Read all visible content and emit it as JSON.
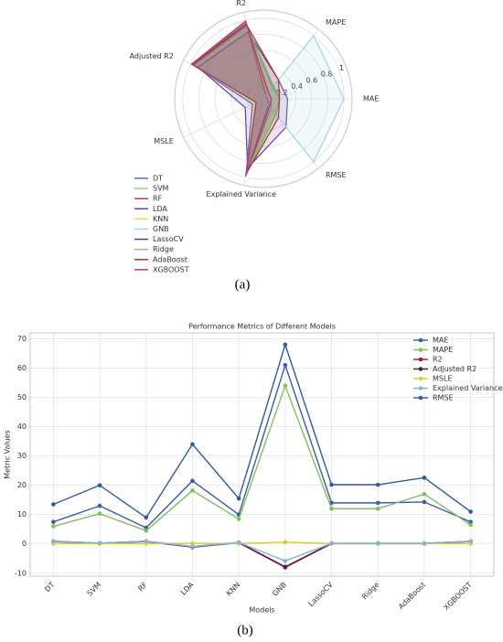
{
  "chart_data": [
    {
      "type": "radar",
      "axes": [
        "MAE",
        "MAPE",
        "R2",
        "Adjusted R2",
        "MSLE",
        "Explained Variance",
        "RMSE"
      ],
      "rlim": [
        0,
        1.1
      ],
      "rticks": [
        0.2,
        0.4,
        0.6,
        0.8,
        1.0
      ],
      "grid": true,
      "legend": "lower left",
      "caption": "(a)",
      "series": [
        {
          "name": "DT",
          "color": "#4c72b0",
          "values": [
            0.1,
            0.1,
            0.95,
            0.98,
            0.15,
            0.97,
            0.15
          ]
        },
        {
          "name": "SVM",
          "color": "#8fd18a",
          "values": [
            0.2,
            0.18,
            0.92,
            0.95,
            0.1,
            0.94,
            0.25
          ]
        },
        {
          "name": "RF",
          "color": "#b0413e",
          "values": [
            0.05,
            0.05,
            0.99,
            0.99,
            0.1,
            0.99,
            0.1
          ]
        },
        {
          "name": "LDA",
          "color": "#6a3d9a",
          "values": [
            0.3,
            0.3,
            0.85,
            0.9,
            0.25,
            0.88,
            0.45
          ]
        },
        {
          "name": "KNN",
          "color": "#e8d94a",
          "values": [
            0.1,
            0.12,
            0.93,
            0.96,
            0.12,
            0.95,
            0.2
          ]
        },
        {
          "name": "GNB",
          "color": "#9fd8e0",
          "values": [
            1.0,
            1.0,
            0.0,
            0.0,
            0.1,
            0.0,
            1.0
          ]
        },
        {
          "name": "LassoCV",
          "color": "#4b3f8f",
          "values": [
            0.2,
            0.2,
            0.93,
            0.96,
            0.1,
            0.95,
            0.25
          ]
        },
        {
          "name": "Ridge",
          "color": "#7ccf7c",
          "values": [
            0.2,
            0.2,
            0.93,
            0.96,
            0.1,
            0.95,
            0.25
          ]
        },
        {
          "name": "AdaBoost",
          "color": "#9b3b2e",
          "values": [
            0.2,
            0.3,
            0.94,
            0.97,
            0.1,
            0.95,
            0.3
          ]
        },
        {
          "name": "XGBOOST",
          "color": "#b5358f",
          "values": [
            0.1,
            0.1,
            0.97,
            0.98,
            0.1,
            0.97,
            0.12
          ]
        }
      ]
    },
    {
      "type": "line",
      "title": "Performance Metrics of Different Models",
      "x_label": "Models",
      "y_label": "Metric Values",
      "caption": "(b)",
      "categories": [
        "DT",
        "SVM",
        "RF",
        "LDA",
        "KNN",
        "GNB",
        "LassoCV",
        "Ridge",
        "AdaBoost",
        "XGBOOST"
      ],
      "ylim": [
        -11,
        72
      ],
      "yticks": [
        -10,
        0,
        10,
        20,
        30,
        40,
        50,
        60,
        70
      ],
      "grid": true,
      "legend": "upper right",
      "series": [
        {
          "name": "MAE",
          "color": "#3b5ba5",
          "values": [
            7.5,
            13,
            5.5,
            21.5,
            10,
            61,
            14,
            14,
            14.3,
            7.5
          ]
        },
        {
          "name": "MAPE",
          "color": "#7fbf5f",
          "values": [
            6,
            10.3,
            4.5,
            18.2,
            8.5,
            54,
            12,
            12,
            17,
            6.5
          ]
        },
        {
          "name": "R2",
          "color": "#9b1c2c",
          "values": [
            0.9,
            0.3,
            0.9,
            -0.9,
            0.5,
            -7.8,
            0.2,
            0.2,
            0.2,
            0.9
          ]
        },
        {
          "name": "Adjusted R2",
          "color": "#5a1a4a",
          "values": [
            0.8,
            0.2,
            0.8,
            -1.1,
            0.4,
            -8,
            0.1,
            0.1,
            0.1,
            0.8
          ]
        },
        {
          "name": "MSLE",
          "color": "#d8d020",
          "values": [
            0.1,
            0.1,
            0.1,
            0.2,
            0.1,
            0.6,
            0.1,
            0.1,
            0.1,
            0.1
          ]
        },
        {
          "name": "Explained Variance",
          "color": "#7fb8d8",
          "values": [
            0.9,
            0.3,
            0.9,
            -0.9,
            0.5,
            -5.8,
            0.2,
            0.2,
            0.2,
            0.9
          ]
        },
        {
          "name": "RMSE",
          "color": "#2f5a9e",
          "values": [
            13.5,
            20,
            9,
            34,
            15.5,
            68,
            20.2,
            20.2,
            22.6,
            11
          ]
        }
      ]
    }
  ]
}
